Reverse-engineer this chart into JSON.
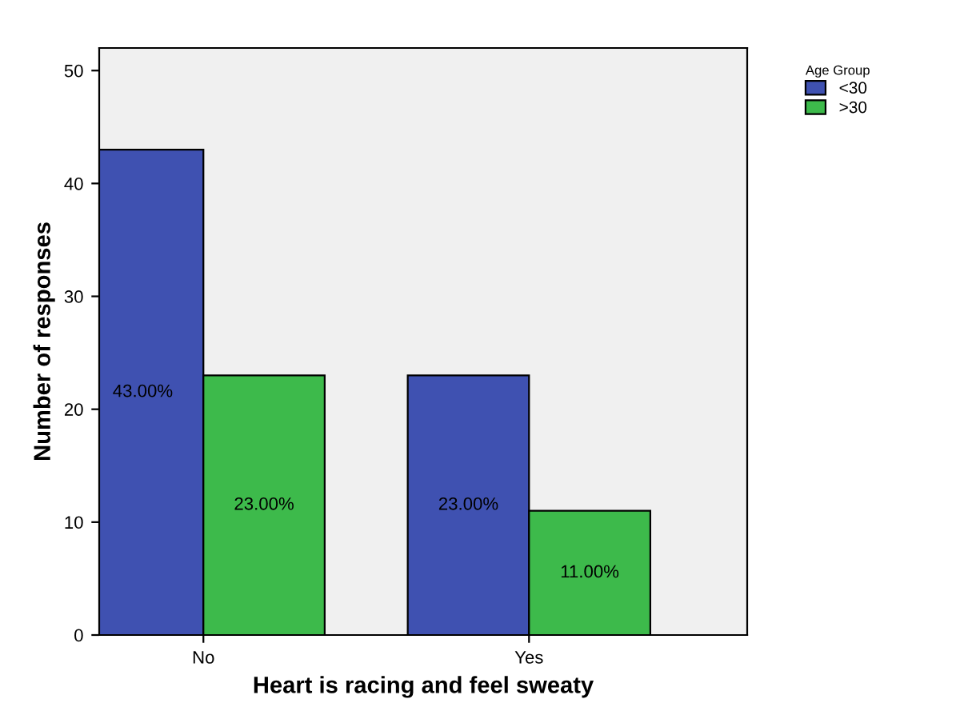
{
  "chart_data": {
    "type": "bar",
    "xlabel": "Heart is racing and feel sweaty",
    "ylabel": "Number of responses",
    "legend_title": "Age Group",
    "legend": "top right",
    "categories": [
      "No",
      "Yes"
    ],
    "series": [
      {
        "name": "<30",
        "color": "#3f51b1",
        "values": [
          43,
          23
        ],
        "value_labels": [
          "43.00%",
          "23.00%"
        ]
      },
      {
        "name": ">30",
        "color": "#3dba4b",
        "values": [
          23,
          11
        ],
        "value_labels": [
          "23.00%",
          "11.00%"
        ]
      }
    ],
    "ylim": [
      0,
      52
    ],
    "yticks": [
      0,
      10,
      20,
      30,
      40,
      50
    ],
    "grid": false
  }
}
